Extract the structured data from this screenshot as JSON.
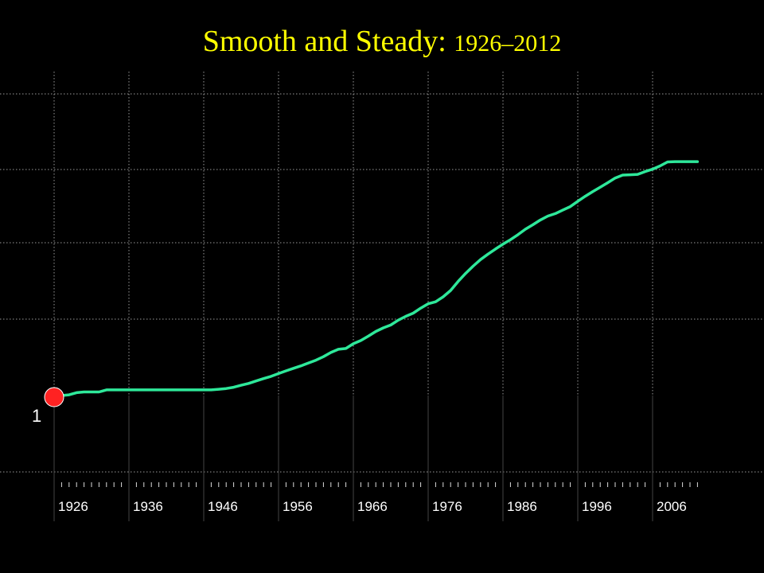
{
  "chart_data": {
    "type": "line",
    "title": "Smooth and Steady:",
    "subtitle": "1926–2012",
    "xlim": [
      1925,
      2013
    ],
    "ylim": [
      0,
      6
    ],
    "y_scale": "log",
    "grid": true,
    "tick_labels": [
      "1926",
      "1936",
      "1946",
      "1956",
      "1966",
      "1976",
      "1986",
      "1996",
      "2006"
    ],
    "start_marker": {
      "x": 1926,
      "y": 1,
      "label": "1"
    },
    "series": [
      {
        "color": "#2ee89a",
        "x": [
          1926,
          1927,
          1928,
          1929,
          1930,
          1931,
          1932,
          1933,
          1934,
          1935,
          1936,
          1937,
          1938,
          1939,
          1940,
          1941,
          1942,
          1943,
          1944,
          1945,
          1946,
          1947,
          1948,
          1949,
          1950,
          1951,
          1952,
          1953,
          1954,
          1955,
          1956,
          1957,
          1958,
          1959,
          1960,
          1961,
          1962,
          1963,
          1964,
          1965,
          1966,
          1967,
          1968,
          1969,
          1970,
          1971,
          1972,
          1973,
          1974,
          1975,
          1976,
          1977,
          1978,
          1979,
          1980,
          1981,
          1982,
          1983,
          1984,
          1985,
          1986,
          1987,
          1988,
          1989,
          1990,
          1991,
          1992,
          1993,
          1994,
          1995,
          1996,
          1997,
          1998,
          1999,
          2000,
          2001,
          2002,
          2003,
          2004,
          2005,
          2006,
          2007,
          2008,
          2009,
          2010,
          2011,
          2012
        ],
        "y": [
          1.0,
          1.0,
          1.01,
          1.04,
          1.05,
          1.05,
          1.05,
          1.08,
          1.08,
          1.08,
          1.08,
          1.08,
          1.08,
          1.08,
          1.08,
          1.08,
          1.08,
          1.08,
          1.08,
          1.08,
          1.08,
          1.08,
          1.09,
          1.1,
          1.12,
          1.15,
          1.18,
          1.22,
          1.26,
          1.3,
          1.35,
          1.4,
          1.45,
          1.5,
          1.56,
          1.62,
          1.7,
          1.8,
          1.88,
          1.9,
          2.03,
          2.12,
          2.25,
          2.4,
          2.52,
          2.62,
          2.8,
          2.95,
          3.08,
          3.3,
          3.5,
          3.6,
          3.85,
          4.2,
          4.75,
          5.3,
          5.85,
          6.4,
          6.9,
          7.4,
          7.9,
          8.4,
          9.0,
          9.7,
          10.3,
          11.0,
          11.6,
          12.0,
          12.6,
          13.2,
          14.2,
          15.2,
          16.2,
          17.2,
          18.3,
          19.5,
          20.3,
          20.4,
          20.5,
          21.3,
          22.0,
          23.0,
          24.3,
          24.4,
          24.4,
          24.4,
          24.4
        ]
      }
    ]
  }
}
